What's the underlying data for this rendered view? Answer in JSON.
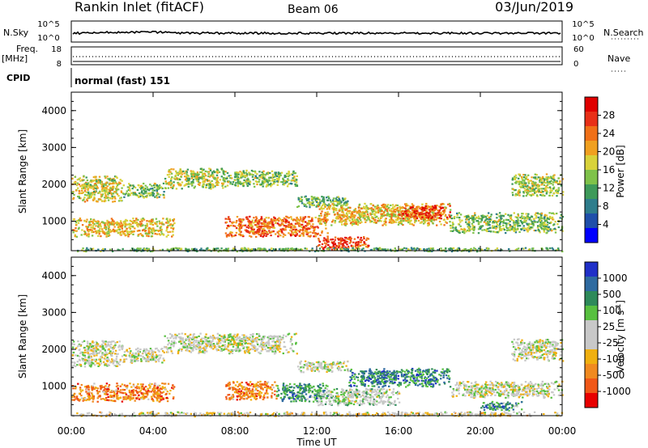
{
  "header": {
    "station": "Rankin Inlet (fitACF)",
    "beam": "Beam 06",
    "date": "03/Jun/2019"
  },
  "labels": {
    "nsky": "N.Sky",
    "nsearch": "N.Search",
    "freq_line1": "Freq.",
    "freq_line2": "[MHz]",
    "nave": "Nave",
    "cpid": "CPID",
    "cpid_value": "normal (fast) 151",
    "nsky_ticks": [
      "10^5",
      "10^0"
    ],
    "nsearch_ticks": [
      "10^5",
      "10^0"
    ],
    "freq_ticks": [
      "18",
      "8"
    ],
    "nave_ticks": [
      "60",
      "0"
    ]
  },
  "chart_data": [
    {
      "type": "heatmap",
      "name": "power-panel",
      "ylabel": "Slant Range [km]",
      "xlabel": "Time UT",
      "ylim": [
        200,
        4500
      ],
      "xlim": [
        0,
        24
      ],
      "yticks": [
        "1000",
        "2000",
        "3000",
        "4000"
      ],
      "xticks": [
        "00:00",
        "04:00",
        "08:00",
        "12:00",
        "16:00",
        "20:00",
        "00:00"
      ],
      "colorbar": {
        "label": "Power [dB]",
        "ticks": [
          "4",
          "8",
          "12",
          "16",
          "20",
          "24",
          "28"
        ],
        "colors": [
          "#0000ff",
          "#1f4faa",
          "#2e7d8c",
          "#3e9a5a",
          "#7fc24a",
          "#d8d23a",
          "#f0a020",
          "#f07018",
          "#e83018",
          "#e00000"
        ]
      },
      "regions": [
        {
          "t0": 0,
          "t1": 2.5,
          "r0": 1550,
          "r1": 2250,
          "level": 0.55
        },
        {
          "t0": 2.5,
          "t1": 4.5,
          "r0": 1650,
          "r1": 2050,
          "level": 0.45
        },
        {
          "t0": 4.5,
          "t1": 7.5,
          "r0": 1900,
          "r1": 2450,
          "level": 0.5
        },
        {
          "t0": 7.5,
          "t1": 11.0,
          "r0": 1950,
          "r1": 2400,
          "level": 0.45
        },
        {
          "t0": 11.0,
          "t1": 13.5,
          "r0": 1400,
          "r1": 1700,
          "level": 0.4
        },
        {
          "t0": 0,
          "t1": 5.0,
          "r0": 600,
          "r1": 1100,
          "level": 0.6
        },
        {
          "t0": 7.5,
          "t1": 12.5,
          "r0": 600,
          "r1": 1150,
          "level": 0.75
        },
        {
          "t0": 12.0,
          "t1": 18.5,
          "r0": 900,
          "r1": 1500,
          "level": 0.6
        },
        {
          "t0": 16.0,
          "t1": 18.5,
          "r0": 1050,
          "r1": 1450,
          "level": 0.8
        },
        {
          "t0": 18.5,
          "t1": 24,
          "r0": 700,
          "r1": 1250,
          "level": 0.45
        },
        {
          "t0": 21.5,
          "t1": 24,
          "r0": 1700,
          "r1": 2300,
          "level": 0.5
        },
        {
          "t0": 12.0,
          "t1": 14.5,
          "r0": 250,
          "r1": 600,
          "level": 0.85
        },
        {
          "t0": 0,
          "t1": 24,
          "r0": 200,
          "r1": 300,
          "level": 0.4
        }
      ]
    },
    {
      "type": "heatmap",
      "name": "velocity-panel",
      "ylabel": "Slant Range [km]",
      "xlabel": "Time UT",
      "ylim": [
        200,
        4500
      ],
      "xlim": [
        0,
        24
      ],
      "yticks": [
        "1000",
        "2000",
        "3000",
        "4000"
      ],
      "xticks": [
        "00:00",
        "04:00",
        "08:00",
        "12:00",
        "16:00",
        "20:00",
        "00:00"
      ],
      "colorbar": {
        "label": "Velocity [m s",
        "label_sup": "-1",
        "label_end": "]",
        "ticks": [
          "1000",
          "500",
          "100",
          "25",
          "-25",
          "-100",
          "-500",
          "-1000"
        ],
        "colors": [
          "#2030c8",
          "#2e6aa0",
          "#2e8a5a",
          "#58c040",
          "#c8c8c8",
          "#c8c8c8",
          "#f0b010",
          "#f08a20",
          "#f05818",
          "#e80000"
        ]
      },
      "regions": [
        {
          "t0": 0,
          "t1": 2.5,
          "r0": 1550,
          "r1": 2250,
          "level": 0.5
        },
        {
          "t0": 2.5,
          "t1": 4.5,
          "r0": 1650,
          "r1": 2050,
          "level": 0.5
        },
        {
          "t0": 4.5,
          "t1": 11.0,
          "r0": 1900,
          "r1": 2450,
          "level": 0.5
        },
        {
          "t0": 11.0,
          "t1": 13.5,
          "r0": 1400,
          "r1": 1700,
          "level": 0.5
        },
        {
          "t0": 0,
          "t1": 5.0,
          "r0": 600,
          "r1": 1100,
          "level": 0.25
        },
        {
          "t0": 7.5,
          "t1": 10.0,
          "r0": 650,
          "r1": 1150,
          "level": 0.25
        },
        {
          "t0": 10.0,
          "t1": 12.5,
          "r0": 600,
          "r1": 1100,
          "level": 0.75
        },
        {
          "t0": 13.5,
          "t1": 18.5,
          "r0": 1000,
          "r1": 1500,
          "level": 0.78
        },
        {
          "t0": 12.0,
          "t1": 16.0,
          "r0": 500,
          "r1": 950,
          "level": 0.55
        },
        {
          "t0": 18.5,
          "t1": 24,
          "r0": 700,
          "r1": 1150,
          "level": 0.5
        },
        {
          "t0": 21.5,
          "t1": 24,
          "r0": 1700,
          "r1": 2300,
          "level": 0.5
        },
        {
          "t0": 20.0,
          "t1": 22.0,
          "r0": 350,
          "r1": 600,
          "level": 0.75
        },
        {
          "t0": 0,
          "t1": 24,
          "r0": 200,
          "r1": 320,
          "level": 0.45
        }
      ]
    }
  ]
}
